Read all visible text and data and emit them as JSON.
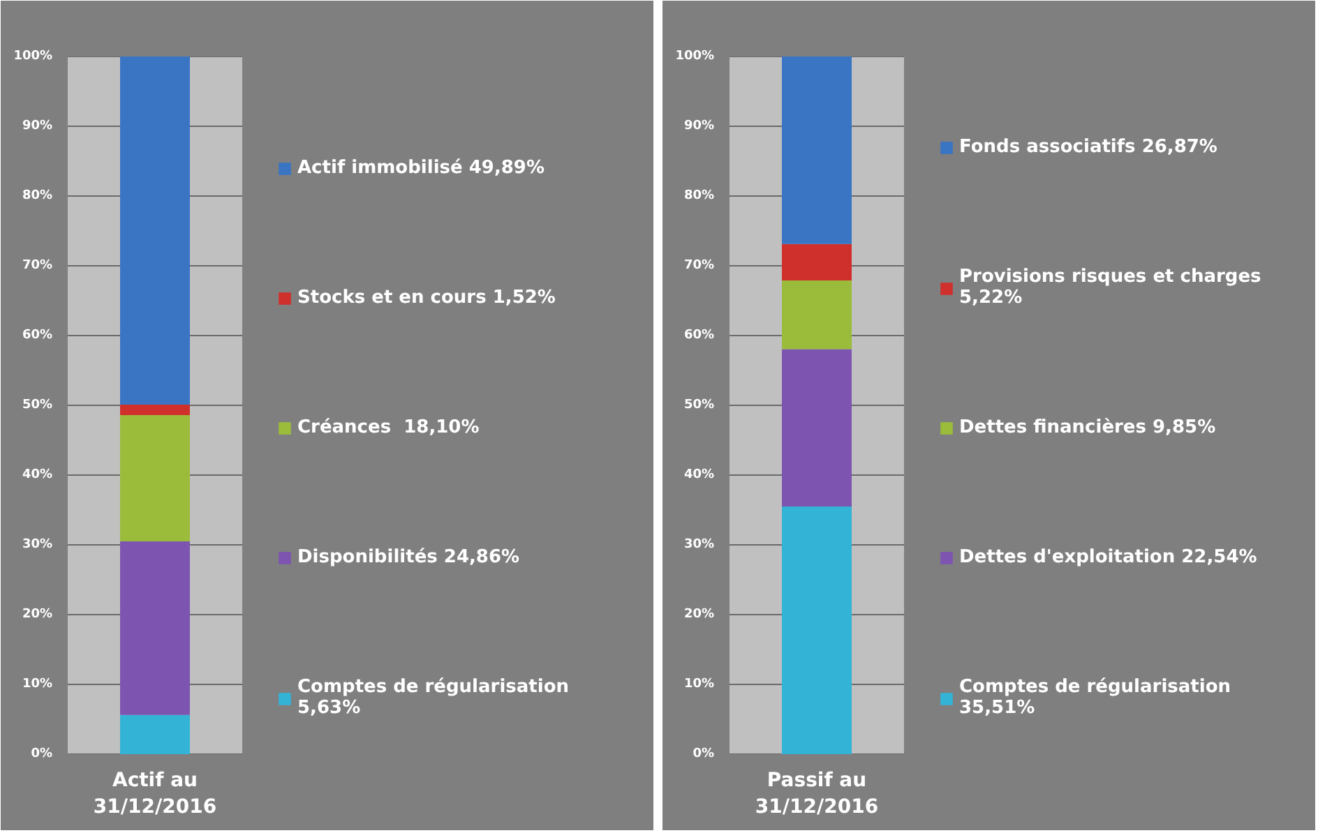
{
  "chart_data": [
    {
      "type": "bar",
      "stacked": true,
      "categories": [
        "Actif au\n31/12/2016"
      ],
      "ylim": [
        0,
        100
      ],
      "yticks": [
        {
          "value": 0,
          "label": "0%"
        },
        {
          "value": 10,
          "label": "10%"
        },
        {
          "value": 20,
          "label": "20%"
        },
        {
          "value": 30,
          "label": "30%"
        },
        {
          "value": 40,
          "label": "40%"
        },
        {
          "value": 50,
          "label": "50%"
        },
        {
          "value": 60,
          "label": "60%"
        },
        {
          "value": 70,
          "label": "70%"
        },
        {
          "value": 80,
          "label": "80%"
        },
        {
          "value": 90,
          "label": "90%"
        },
        {
          "value": 100,
          "label": "100%"
        }
      ],
      "grid": "y",
      "legend": "right",
      "series": [
        {
          "name": "Comptes de régularisation\n5,63%",
          "color": "#33b3d6",
          "values": [
            5.63
          ]
        },
        {
          "name": "Disponibilités 24,86%",
          "color": "#7d55b0",
          "values": [
            24.86
          ]
        },
        {
          "name": "Créances  18,10%",
          "color": "#9bbb3b",
          "values": [
            18.1
          ]
        },
        {
          "name": "Stocks et en cours 1,52%",
          "color": "#d0302c",
          "values": [
            1.52
          ]
        },
        {
          "name": "Actif immobilisé 49,89%",
          "color": "#3a75c4",
          "values": [
            49.89
          ]
        }
      ]
    },
    {
      "type": "bar",
      "stacked": true,
      "categories": [
        "Passif au\n31/12/2016"
      ],
      "ylim": [
        0,
        100
      ],
      "yticks": [
        {
          "value": 0,
          "label": "0%"
        },
        {
          "value": 10,
          "label": "10%"
        },
        {
          "value": 20,
          "label": "20%"
        },
        {
          "value": 30,
          "label": "30%"
        },
        {
          "value": 40,
          "label": "40%"
        },
        {
          "value": 50,
          "label": "50%"
        },
        {
          "value": 60,
          "label": "60%"
        },
        {
          "value": 70,
          "label": "70%"
        },
        {
          "value": 80,
          "label": "80%"
        },
        {
          "value": 90,
          "label": "90%"
        },
        {
          "value": 100,
          "label": "100%"
        }
      ],
      "grid": "y",
      "legend": "right",
      "series": [
        {
          "name": "Comptes de régularisation\n35,51%",
          "color": "#33b3d6",
          "values": [
            35.51
          ]
        },
        {
          "name": "Dettes d'exploitation 22,54%",
          "color": "#7d55b0",
          "values": [
            22.54
          ]
        },
        {
          "name": "Dettes financières 9,85%",
          "color": "#9bbb3b",
          "values": [
            9.85
          ]
        },
        {
          "name": "Provisions risques et charges\n5,22%",
          "color": "#d0302c",
          "values": [
            5.22
          ]
        },
        {
          "name": "Fonds associatifs 26,87%",
          "color": "#3a75c4",
          "values": [
            26.87
          ]
        }
      ]
    }
  ]
}
